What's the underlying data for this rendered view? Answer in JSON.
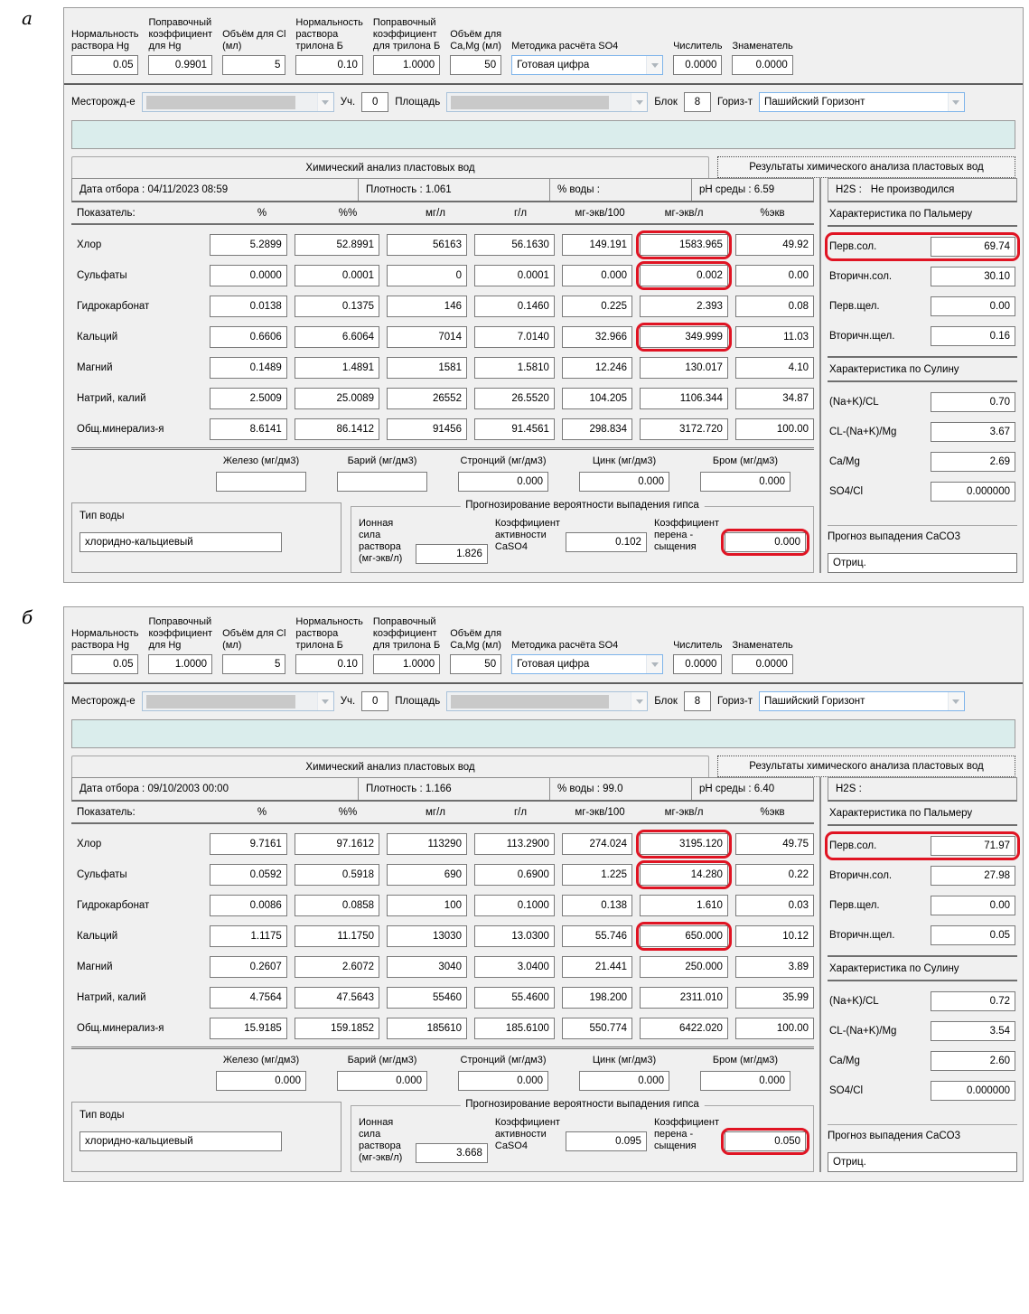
{
  "labels": {
    "cfg": [
      "Нормальность\nраствора Hg",
      "Поправочный\nкоэффициент\nдля Hg",
      "Объём для Cl\n(мл)",
      "Нормальность\nраствора\nтрилона Б",
      "Поправочный\nкоэффициент\nдля трилона Б",
      "Объём для\nCa,Mg  (мл)"
    ],
    "so4_method_label": "Методика расчёта SO4",
    "numerator_label": "Числитель",
    "denominator_label": "Знаменатель",
    "location": {
      "field": "Месторожд-е",
      "uch": "Уч.",
      "area": "Площадь",
      "blok": "Блок",
      "horizon": "Гориз-т"
    },
    "tabs": [
      "Химический анализ пластовых вод",
      "Результаты химического анализа пластовых вод"
    ],
    "info": [
      "Дата отбора :",
      "Плотность :",
      "% воды :",
      "pH среды :",
      "H2S :"
    ],
    "table_headers": [
      "Показатель:",
      "%",
      "%%",
      "мг/л",
      "г/л",
      "мг-экв/100",
      "мг-экв/л",
      "%экв"
    ],
    "palmer_title": "Характеристика по Пальмеру",
    "sulin_title": "Характеристика по Сулину",
    "trace": [
      "Железо (мг/дм3)",
      "Барий (мг/дм3)",
      "Стронций (мг/дм3)",
      "Цинк (мг/дм3)",
      "Бром (мг/дм3)"
    ],
    "gypsum_title": "Прогнозирование вероятности выпадения гипса",
    "water_type": "Тип воды",
    "ionic": "Ионная сила\nраствора\n(мг-экв/л)",
    "activity": "Коэффициент\nактивности\nCaSO4",
    "oversat": "Коэффициент\nперена -\nсыщения",
    "caco3": "Прогноз выпадения CaCO3"
  },
  "highlight_color": "#e01423",
  "panels": [
    {
      "figure_label": "а",
      "cfg_values": [
        "0.05",
        "0.9901",
        "5",
        "0.10",
        "1.0000",
        "50"
      ],
      "so4_method": "Готовая цифра",
      "numerator": "0.0000",
      "denominator": "0.0000",
      "uch": "0",
      "blok": "8",
      "horizon": "Пашийский Горизонт",
      "info_values": [
        "04/11/2023 08:59",
        "1.061",
        "",
        "6.59",
        "Не производился"
      ],
      "rows": [
        {
          "label": "Хлор",
          "values": [
            "5.2899",
            "52.8991",
            "56163",
            "56.1630",
            "149.191",
            "1583.965",
            "49.92"
          ]
        },
        {
          "label": "Сульфаты",
          "values": [
            "0.0000",
            "0.0001",
            "0",
            "0.0001",
            "0.000",
            "0.002",
            "0.00"
          ]
        },
        {
          "label": "Гидрокарбонат",
          "values": [
            "0.0138",
            "0.1375",
            "146",
            "0.1460",
            "0.225",
            "2.393",
            "0.08"
          ]
        },
        {
          "label": "Кальций",
          "values": [
            "0.6606",
            "6.6064",
            "7014",
            "7.0140",
            "32.966",
            "349.999",
            "11.03"
          ]
        },
        {
          "label": "Магний",
          "values": [
            "0.1489",
            "1.4891",
            "1581",
            "1.5810",
            "12.246",
            "130.017",
            "4.10"
          ]
        },
        {
          "label": "Натрий, калий",
          "values": [
            "2.5009",
            "25.0089",
            "26552",
            "26.5520",
            "104.205",
            "1106.344",
            "34.87"
          ]
        },
        {
          "label": "Общ.минерализ-я",
          "values": [
            "8.6141",
            "86.1412",
            "91456",
            "91.4561",
            "298.834",
            "3172.720",
            "100.00"
          ]
        }
      ],
      "palmer": [
        {
          "label": "Перв.сол.",
          "value": "69.74"
        },
        {
          "label": "Вторичн.сол.",
          "value": "30.10"
        },
        {
          "label": "Перв.щел.",
          "value": "0.00"
        },
        {
          "label": "Вторичн.щел.",
          "value": "0.16"
        }
      ],
      "sulin": [
        {
          "label": "(Na+K)/CL",
          "value": "0.70"
        },
        {
          "label": "CL-(Na+K)/Mg",
          "value": "3.67"
        },
        {
          "label": "Ca/Mg",
          "value": "2.69"
        },
        {
          "label": "SO4/Cl",
          "value": "0.000000"
        }
      ],
      "trace_values": [
        "",
        "",
        "0.000",
        "0.000",
        "0.000"
      ],
      "water_type_value": "хлоридно-кальциевый",
      "ionic_value": "1.826",
      "activity_value": "0.102",
      "oversat_value": "0.000",
      "caco3_value": "Отриц."
    },
    {
      "figure_label": "б",
      "cfg_values": [
        "0.05",
        "1.0000",
        "5",
        "0.10",
        "1.0000",
        "50"
      ],
      "so4_method": "Готовая цифра",
      "numerator": "0.0000",
      "denominator": "0.0000",
      "uch": "0",
      "blok": "8",
      "horizon": "Пашийский Горизонт",
      "info_values": [
        "09/10/2003 00:00",
        "1.166",
        "99.0",
        "6.40",
        ""
      ],
      "rows": [
        {
          "label": "Хлор",
          "values": [
            "9.7161",
            "97.1612",
            "113290",
            "113.2900",
            "274.024",
            "3195.120",
            "49.75"
          ]
        },
        {
          "label": "Сульфаты",
          "values": [
            "0.0592",
            "0.5918",
            "690",
            "0.6900",
            "1.225",
            "14.280",
            "0.22"
          ]
        },
        {
          "label": "Гидрокарбонат",
          "values": [
            "0.0086",
            "0.0858",
            "100",
            "0.1000",
            "0.138",
            "1.610",
            "0.03"
          ]
        },
        {
          "label": "Кальций",
          "values": [
            "1.1175",
            "11.1750",
            "13030",
            "13.0300",
            "55.746",
            "650.000",
            "10.12"
          ]
        },
        {
          "label": "Магний",
          "values": [
            "0.2607",
            "2.6072",
            "3040",
            "3.0400",
            "21.441",
            "250.000",
            "3.89"
          ]
        },
        {
          "label": "Натрий, калий",
          "values": [
            "4.7564",
            "47.5643",
            "55460",
            "55.4600",
            "198.200",
            "2311.010",
            "35.99"
          ]
        },
        {
          "label": "Общ.минерализ-я",
          "values": [
            "15.9185",
            "159.1852",
            "185610",
            "185.6100",
            "550.774",
            "6422.020",
            "100.00"
          ]
        }
      ],
      "palmer": [
        {
          "label": "Перв.сол.",
          "value": "71.97"
        },
        {
          "label": "Вторичн.сол.",
          "value": "27.98"
        },
        {
          "label": "Перв.щел.",
          "value": "0.00"
        },
        {
          "label": "Вторичн.щел.",
          "value": "0.05"
        }
      ],
      "sulin": [
        {
          "label": "(Na+K)/CL",
          "value": "0.72"
        },
        {
          "label": "CL-(Na+K)/Mg",
          "value": "3.54"
        },
        {
          "label": "Ca/Mg",
          "value": "2.60"
        },
        {
          "label": "SO4/Cl",
          "value": "0.000000"
        }
      ],
      "trace_values": [
        "0.000",
        "0.000",
        "0.000",
        "0.000",
        "0.000"
      ],
      "water_type_value": "хлоридно-кальциевый",
      "ionic_value": "3.668",
      "activity_value": "0.095",
      "oversat_value": "0.050",
      "caco3_value": "Отриц."
    }
  ]
}
